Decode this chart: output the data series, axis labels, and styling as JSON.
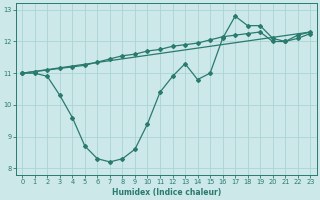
{
  "line1_x": [
    0,
    1,
    2,
    3,
    4,
    5,
    6,
    7,
    8,
    9,
    10,
    11,
    12,
    13,
    14,
    15,
    16,
    17,
    18,
    19,
    20,
    21,
    22,
    23
  ],
  "line1_y": [
    11.0,
    11.0,
    10.9,
    10.3,
    9.6,
    8.7,
    8.3,
    8.2,
    8.3,
    8.6,
    9.4,
    10.4,
    10.9,
    11.3,
    10.8,
    11.0,
    12.1,
    12.8,
    12.5,
    12.5,
    12.1,
    12.0,
    12.2,
    12.3
  ],
  "line2_x": [
    0,
    23
  ],
  "line2_y": [
    11.0,
    12.3
  ],
  "line3_x": [
    0,
    1,
    2,
    3,
    4,
    5,
    6,
    7,
    8,
    9,
    10,
    11,
    12,
    13,
    14,
    15,
    16,
    17,
    18,
    19,
    20,
    21,
    22,
    23
  ],
  "line3_y": [
    11.0,
    11.05,
    11.1,
    11.15,
    11.2,
    11.25,
    11.35,
    11.45,
    11.55,
    11.6,
    11.7,
    11.75,
    11.85,
    11.9,
    11.95,
    12.05,
    12.15,
    12.2,
    12.25,
    12.3,
    12.0,
    12.0,
    12.1,
    12.25
  ],
  "line_color": "#2a7a6e",
  "bg_color": "#cce8e8",
  "grid_color": "#aad4d4",
  "xlabel": "Humidex (Indice chaleur)",
  "xlim": [
    -0.5,
    23.5
  ],
  "ylim": [
    7.8,
    13.2
  ],
  "yticks": [
    8,
    9,
    10,
    11,
    12,
    13
  ],
  "xticks": [
    0,
    1,
    2,
    3,
    4,
    5,
    6,
    7,
    8,
    9,
    10,
    11,
    12,
    13,
    14,
    15,
    16,
    17,
    18,
    19,
    20,
    21,
    22,
    23
  ],
  "xlabel_fontsize": 5.5,
  "tick_fontsize": 4.8,
  "linewidth": 0.9,
  "markersize": 2.0
}
